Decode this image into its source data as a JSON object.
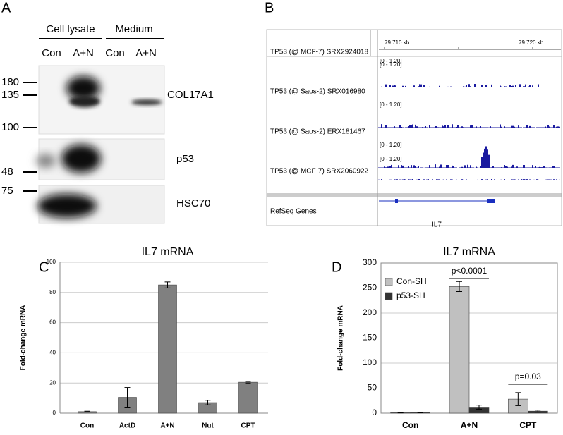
{
  "panels": {
    "A": {
      "label": "A",
      "headers": [
        "Cell lysate",
        "Medium"
      ],
      "lanes": [
        "Con",
        "A+N",
        "Con",
        "A+N"
      ],
      "markers": [
        "180",
        "135",
        "100",
        "48",
        "75"
      ],
      "proteins": [
        "COL17A1",
        "p53",
        "HSC70"
      ]
    },
    "B": {
      "label": "B",
      "scale": [
        "79 710 kb",
        "79 720 kb"
      ],
      "tracks": [
        "TP53 (@ MCF-7) SRX2924018",
        "TP53 (@ Saos-2) SRX016980",
        "TP53 (@ Saos-2) ERX181467",
        "TP53 (@ MCF-7) SRX2060922"
      ],
      "range": "[0 - 1.20]",
      "genes": "RefSeq Genes",
      "gene": "IL7"
    }
  },
  "chart_data": [
    {
      "type": "bar",
      "label": "C",
      "title": "IL7 mRNA",
      "ylabel": "Fold-change mRNA",
      "categories": [
        "Con",
        "ActD",
        "A+N",
        "Nut",
        "CPT"
      ],
      "series": [
        {
          "name": "Fold-change",
          "color": "#808080",
          "values": [
            1,
            10.5,
            85,
            7,
            20.5
          ],
          "errors": [
            0.3,
            6.5,
            2,
            1.5,
            0.5
          ]
        }
      ],
      "ylim": [
        0,
        100
      ],
      "yticks": [
        0,
        20,
        40,
        60,
        80,
        100
      ],
      "grid": true
    },
    {
      "type": "bar",
      "label": "D",
      "title": "IL7 mRNA",
      "ylabel": "Fold-change mRNA",
      "categories": [
        "Con",
        "A+N",
        "CPT"
      ],
      "series": [
        {
          "name": "Con-SH",
          "color": "#c0c0c0",
          "values": [
            1,
            253,
            28
          ],
          "errors": [
            0.5,
            10,
            13
          ]
        },
        {
          "name": "p53-SH",
          "color": "#333333",
          "values": [
            1,
            12,
            4
          ],
          "errors": [
            0.3,
            4,
            2
          ]
        }
      ],
      "ylim": [
        0,
        300
      ],
      "yticks": [
        0,
        50,
        100,
        150,
        200,
        250,
        300
      ],
      "grid": true,
      "legend": "top-left",
      "annotations": [
        "p<0.0001",
        "p=0.03"
      ]
    }
  ]
}
